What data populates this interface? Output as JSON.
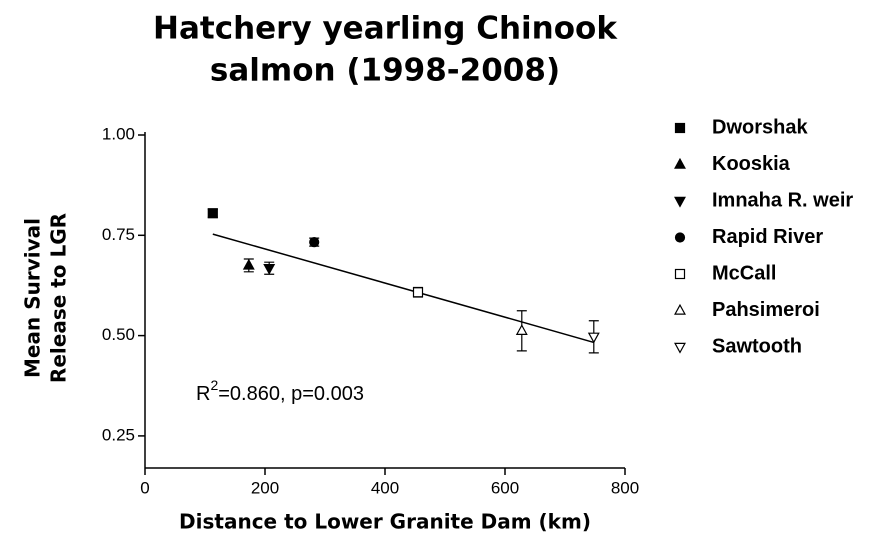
{
  "chart_data": {
    "type": "scatter",
    "title": [
      "Hatchery yearling Chinook",
      "salmon (1998-2008)"
    ],
    "x_label": "Distance to Lower Granite Dam (km)",
    "y_label": [
      "Mean Survival",
      "Release to LGR"
    ],
    "annotation": {
      "base": "R",
      "sup": "2",
      "rest": "=0.860, p=0.003"
    },
    "xlim": [
      0,
      800
    ],
    "xticks": [
      0,
      200,
      400,
      600,
      800
    ],
    "ylim": [
      0.17,
      1.0
    ],
    "yticks": [
      {
        "value": 1.0,
        "label": "1.00"
      },
      {
        "value": 0.75,
        "label": "0.75"
      },
      {
        "value": 0.5,
        "label": "0.50"
      },
      {
        "value": 0.25,
        "label": "0.25"
      }
    ],
    "color": "#000000",
    "regression": {
      "x": [
        113,
        748
      ],
      "y": [
        0.753,
        0.483
      ]
    },
    "series": [
      {
        "name": "Dworshak",
        "marker": "square",
        "filled": true,
        "x": [
          113
        ],
        "values": [
          0.805
        ],
        "errors": [
          0.01
        ]
      },
      {
        "name": "Kooskia",
        "marker": "triangle-up",
        "filled": true,
        "x": [
          173
        ],
        "values": [
          0.675
        ],
        "errors": [
          0.016
        ]
      },
      {
        "name": "Imnaha R. weir",
        "marker": "triangle-down",
        "filled": true,
        "x": [
          207
        ],
        "values": [
          0.668
        ],
        "errors": [
          0.015
        ]
      },
      {
        "name": "Rapid River",
        "marker": "circle",
        "filled": true,
        "x": [
          282
        ],
        "values": [
          0.733
        ],
        "errors": [
          0.01
        ]
      },
      {
        "name": "McCall",
        "marker": "square",
        "filled": false,
        "x": [
          455
        ],
        "values": [
          0.608
        ],
        "errors": [
          0.012
        ]
      },
      {
        "name": "Pahsimeroi",
        "marker": "triangle-up",
        "filled": false,
        "x": [
          628
        ],
        "values": [
          0.512
        ],
        "errors": [
          0.05
        ]
      },
      {
        "name": "Sawtooth",
        "marker": "triangle-down",
        "filled": false,
        "x": [
          748
        ],
        "values": [
          0.497
        ],
        "errors": [
          0.04
        ]
      }
    ]
  }
}
